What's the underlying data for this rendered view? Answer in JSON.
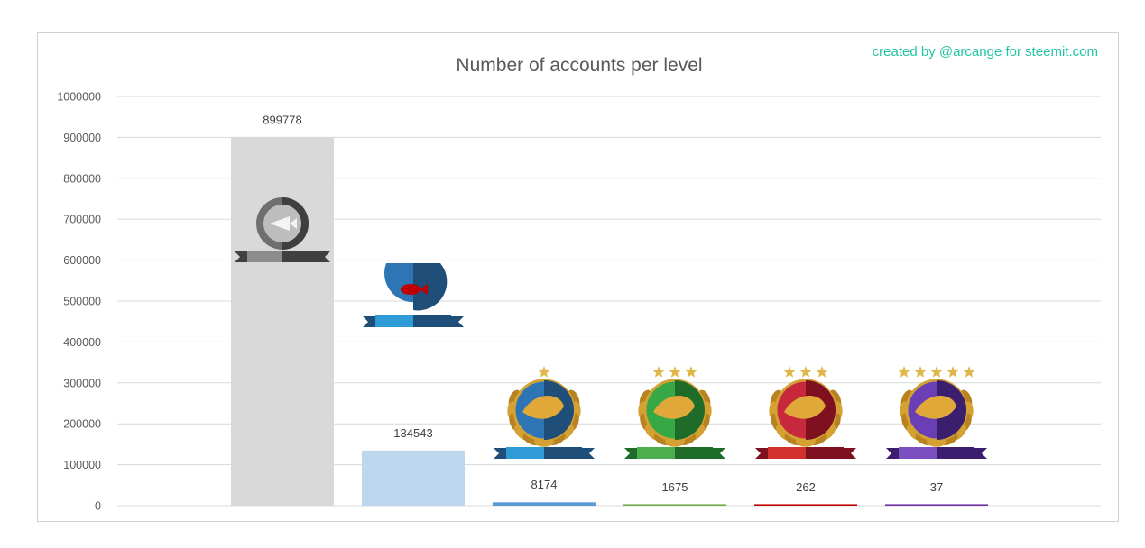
{
  "chart_data": {
    "type": "bar",
    "title": "Number of accounts per level",
    "annotation": "created by @arcange for steemit.com",
    "xlabel": "",
    "ylabel": "",
    "ylim": [
      0,
      1000000
    ],
    "yticks": [
      0,
      100000,
      200000,
      300000,
      400000,
      500000,
      600000,
      700000,
      800000,
      900000,
      1000000
    ],
    "grid": true,
    "legend": "none",
    "series": [
      {
        "values": [
          899778,
          134543,
          8174,
          1675,
          262,
          37
        ],
        "data_labels": [
          "899778",
          "134543",
          "8174",
          "1675",
          "262",
          "37"
        ],
        "colors": [
          "#d9d9d9",
          "#bdd7ee",
          "#5b9bd5",
          "#70ad47",
          "#c00000",
          "#7030a0"
        ],
        "badge_icons": [
          "plankton-fish-skeleton-icon",
          "minnow-fishbowl-icon",
          "dolphin-fish-laurel-icon",
          "orca-dolphin-laurel-icon",
          "whale-orca-laurel-icon",
          "whale-laurel-icon"
        ]
      }
    ]
  }
}
